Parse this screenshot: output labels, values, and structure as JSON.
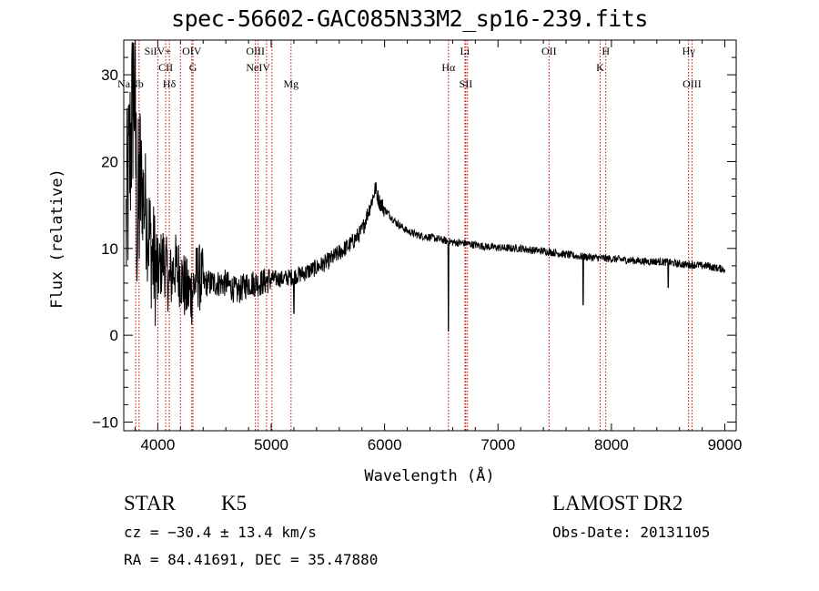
{
  "title": "spec-56602-GAC085N33M2_sp16-239.fits",
  "info": {
    "class": "STAR",
    "subclass": "K5",
    "survey": "LAMOST DR2",
    "cz": "cz = −30.4 ± 13.4 km/s",
    "obs_date": "Obs-Date: 20131105",
    "radec": "RA =  84.41691, DEC =  35.47880"
  },
  "chart_data": {
    "type": "line",
    "title": "spec-56602-GAC085N33M2_sp16-239.fits",
    "xlabel": "Wavelength (Å)",
    "ylabel": "Flux (relative)",
    "xlim": [
      3700,
      9100
    ],
    "ylim": [
      -11,
      34
    ],
    "xticks": [
      4000,
      5000,
      6000,
      7000,
      8000,
      9000
    ],
    "yticks": [
      -10,
      0,
      10,
      20,
      30
    ],
    "grid": false,
    "line_color": "#000000",
    "marker_color": "#cc0000",
    "series": [
      {
        "x": [
          3700,
          3760,
          3790,
          3820,
          3850,
          3900,
          3950,
          4000,
          4050,
          4100,
          4150,
          4200,
          4250,
          4300,
          4350,
          4400,
          4500,
          4600,
          4700,
          4800,
          4850,
          4900,
          5000,
          5100,
          5200,
          5300,
          5400,
          5500,
          5600,
          5700,
          5800,
          5850,
          5900,
          5920,
          5950,
          6000,
          6100,
          6200,
          6300,
          6400,
          6500,
          6563,
          6600,
          6700,
          6800,
          6900,
          7000,
          7100,
          7200,
          7300,
          7400,
          7500,
          7600,
          7700,
          7800,
          7900,
          8000,
          8100,
          8200,
          8300,
          8400,
          8500,
          8600,
          8700,
          8750,
          8800,
          8850,
          8900,
          8950,
          9000
        ],
        "y": [
          7,
          22,
          30,
          12,
          18,
          14,
          9,
          7,
          9,
          6,
          8,
          7,
          5,
          5,
          7,
          6,
          6,
          6,
          5,
          6,
          6,
          6,
          6.5,
          6.5,
          6.8,
          7.2,
          7.8,
          8.5,
          9.5,
          10.5,
          12,
          14,
          16,
          17,
          15.5,
          14.5,
          13,
          12,
          11.5,
          11.3,
          11,
          10.8,
          10.7,
          10.6,
          10.4,
          10.2,
          10.1,
          10,
          10,
          9.8,
          9.7,
          9.5,
          9.3,
          9.1,
          9,
          8.9,
          8.8,
          8.7,
          8.6,
          8.5,
          8.5,
          8.4,
          8.2,
          8.1,
          8.1,
          8,
          8,
          7.8,
          7.7,
          7.6
        ]
      }
    ],
    "absorption_features": [
      {
        "x": 5200,
        "y": 2.5
      },
      {
        "x": 6563,
        "y": 0.5
      },
      {
        "x": 7750,
        "y": 3.5
      },
      {
        "x": 8500,
        "y": 5.5
      }
    ],
    "lines": [
      {
        "x": 3805,
        "label": "",
        "row": 1
      },
      {
        "x": 3835,
        "label": "",
        "row": 1
      },
      {
        "x": 4000,
        "label": "SiIV+",
        "row": 0
      },
      {
        "x": 4070,
        "label": "CII",
        "row": 1
      },
      {
        "x": 4102,
        "label": "Hδ",
        "row": 2
      },
      {
        "x": 4200,
        "label": "",
        "row": 0
      },
      {
        "x": 4300,
        "label": "OIV",
        "row": 0
      },
      {
        "x": 4310,
        "label": "G",
        "row": 1
      },
      {
        "x": 4861,
        "label": "OIII",
        "row": 0
      },
      {
        "x": 4885,
        "label": "NeIV",
        "row": 1
      },
      {
        "x": 4959,
        "label": "",
        "row": 0
      },
      {
        "x": 5007,
        "label": "",
        "row": 0
      },
      {
        "x": 5175,
        "label": "Mg",
        "row": 2
      },
      {
        "x": 6563,
        "label": "Hα",
        "row": 1
      },
      {
        "x": 6708,
        "label": "Li",
        "row": 0
      },
      {
        "x": 6716,
        "label": "SII",
        "row": 2
      },
      {
        "x": 6731,
        "label": "",
        "row": 0
      },
      {
        "x": 7450,
        "label": "OII",
        "row": 0
      },
      {
        "x": 7900,
        "label": "K",
        "row": 1
      },
      {
        "x": 7950,
        "label": "H",
        "row": 0
      },
      {
        "x": 8680,
        "label": "Hγ",
        "row": 0
      },
      {
        "x": 8710,
        "label": "OIII",
        "row": 2
      }
    ],
    "corner_label": {
      "x": 3760,
      "label": "NaNb"
    }
  }
}
